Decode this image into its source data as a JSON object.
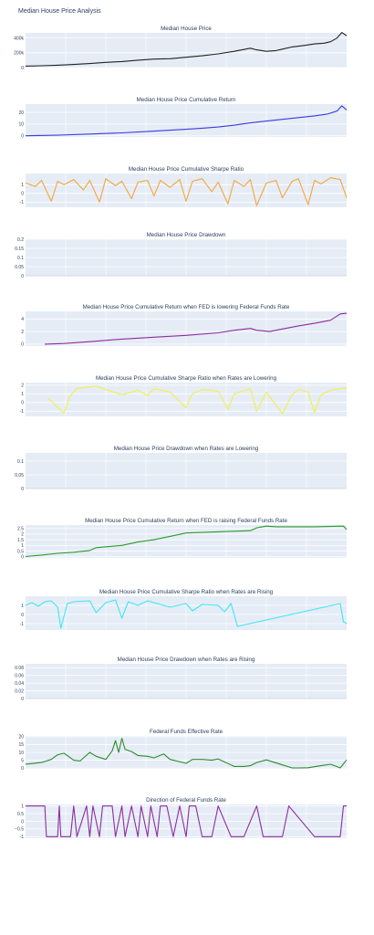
{
  "page": {
    "title": "Median House Price Analysis"
  },
  "colors": {
    "background": "#ffffff",
    "plot_bg": "#e5ecf6",
    "grid": "#ffffff",
    "text": "#2a3f5f"
  },
  "chart_data": [
    {
      "type": "line",
      "title": "Median House Price",
      "color": "#222222",
      "ylim": [
        0,
        470000
      ],
      "yticks": [
        0,
        200000,
        400000
      ],
      "yticklabels": [
        "0",
        "200k",
        "400k"
      ],
      "x": [
        0,
        0.05,
        0.1,
        0.15,
        0.2,
        0.25,
        0.3,
        0.35,
        0.4,
        0.45,
        0.5,
        0.55,
        0.6,
        0.65,
        0.7,
        0.72,
        0.75,
        0.78,
        0.8,
        0.83,
        0.87,
        0.9,
        0.93,
        0.95,
        0.97,
        0.985,
        1.0
      ],
      "values": [
        20000,
        25000,
        32000,
        42000,
        55000,
        70000,
        82000,
        100000,
        115000,
        120000,
        140000,
        160000,
        185000,
        220000,
        262000,
        240000,
        220000,
        230000,
        250000,
        280000,
        300000,
        320000,
        330000,
        350000,
        400000,
        475000,
        430000
      ]
    },
    {
      "type": "line",
      "title": "Median House Price Cumulative Return",
      "color": "#3b3bde",
      "ylim": [
        -1,
        27
      ],
      "yticks": [
        0,
        10,
        20
      ],
      "yticklabels": [
        "0",
        "10",
        "20"
      ],
      "x": [
        0,
        0.1,
        0.2,
        0.3,
        0.4,
        0.5,
        0.55,
        0.6,
        0.65,
        0.7,
        0.75,
        0.8,
        0.85,
        0.9,
        0.94,
        0.97,
        0.985,
        1.0
      ],
      "values": [
        0,
        0.5,
        1.5,
        2.5,
        4.0,
        5.5,
        6.5,
        7.5,
        9.0,
        11.0,
        12.5,
        14.0,
        15.5,
        17.0,
        18.5,
        21.0,
        25.5,
        22.0
      ]
    },
    {
      "type": "line",
      "title": "Median House Price Cumulative Sharpe Ratio",
      "color": "#f4a63a",
      "ylim": [
        -1.6,
        2.3
      ],
      "yticks": [
        -1,
        0,
        1
      ],
      "yticklabels": [
        "-1",
        "0",
        "1"
      ],
      "x": [
        0,
        0.03,
        0.05,
        0.08,
        0.1,
        0.12,
        0.15,
        0.18,
        0.2,
        0.23,
        0.25,
        0.28,
        0.3,
        0.33,
        0.35,
        0.38,
        0.4,
        0.42,
        0.45,
        0.48,
        0.5,
        0.52,
        0.55,
        0.58,
        0.6,
        0.63,
        0.65,
        0.68,
        0.7,
        0.72,
        0.75,
        0.78,
        0.8,
        0.83,
        0.85,
        0.88,
        0.9,
        0.92,
        0.95,
        0.98,
        1.0
      ],
      "values": [
        1.2,
        0.8,
        1.5,
        -0.9,
        1.4,
        1.0,
        1.6,
        0.4,
        1.5,
        -1.0,
        1.7,
        0.9,
        1.4,
        -0.6,
        1.3,
        1.5,
        -0.3,
        1.5,
        0.7,
        1.6,
        -0.9,
        1.4,
        1.7,
        0.2,
        1.3,
        -1.2,
        1.5,
        0.8,
        1.6,
        -1.4,
        1.2,
        1.5,
        -0.5,
        1.4,
        1.7,
        -1.3,
        1.5,
        1.1,
        1.8,
        1.6,
        -0.5
      ]
    },
    {
      "type": "line",
      "title": "Median House Price Drawdown",
      "color": "#cfd8e6",
      "ylim": [
        0,
        0.2
      ],
      "yticks": [
        0,
        0.05,
        0.1,
        0.15,
        0.2
      ],
      "yticklabels": [
        "0",
        "0.05",
        "0.1",
        "0.15",
        "0.2"
      ],
      "x": [
        0,
        0.5,
        1.0
      ],
      "values": [
        0,
        0,
        0
      ]
    },
    {
      "type": "line",
      "title": "Median House Price Cumulative Return when FED is lowering Federal Funds Rate",
      "color": "#8e2c9e",
      "ylim": [
        -0.3,
        5.2
      ],
      "yticks": [
        0,
        2,
        4
      ],
      "yticklabels": [
        "0",
        "2",
        "4"
      ],
      "x": [
        0.06,
        0.12,
        0.2,
        0.3,
        0.4,
        0.5,
        0.6,
        0.65,
        0.7,
        0.72,
        0.76,
        0.8,
        0.85,
        0.9,
        0.95,
        0.98,
        1.0
      ],
      "values": [
        0.0,
        0.1,
        0.4,
        0.8,
        1.1,
        1.4,
        1.8,
        2.2,
        2.5,
        2.2,
        2.0,
        2.4,
        2.9,
        3.3,
        3.8,
        4.8,
        4.9
      ]
    },
    {
      "type": "line",
      "title": "Median House Price Cumulative Sharpe Ratio when Rates are Lowering",
      "color": "#f2f04a",
      "ylim": [
        -1.6,
        2.3
      ],
      "yticks": [
        -1,
        0,
        1,
        2
      ],
      "yticklabels": [
        "-1",
        "0",
        "1",
        "2"
      ],
      "x": [
        0.07,
        0.12,
        0.14,
        0.16,
        0.2,
        0.22,
        0.25,
        0.3,
        0.35,
        0.38,
        0.4,
        0.45,
        0.5,
        0.52,
        0.55,
        0.6,
        0.63,
        0.65,
        0.7,
        0.72,
        0.75,
        0.8,
        0.83,
        0.85,
        0.88,
        0.9,
        0.92,
        0.95,
        0.98,
        1.0
      ],
      "values": [
        0.5,
        -1.2,
        0.8,
        1.6,
        1.8,
        1.9,
        1.5,
        0.9,
        1.4,
        0.8,
        1.6,
        1.2,
        -0.6,
        1.0,
        1.5,
        1.3,
        -0.8,
        1.0,
        1.6,
        -1.0,
        1.2,
        -1.3,
        0.9,
        1.5,
        1.2,
        -1.2,
        0.9,
        1.4,
        1.6,
        1.7
      ]
    },
    {
      "type": "line",
      "title": "Median House Price Drawdown when Rates are Lowering",
      "color": "#cfd8e6",
      "ylim": [
        0,
        0.13
      ],
      "yticks": [
        0,
        0.05,
        0.1
      ],
      "yticklabels": [
        "0",
        "0.05",
        "0.1"
      ],
      "x": [
        0,
        0.5,
        1.0
      ],
      "values": [
        0,
        0,
        0
      ]
    },
    {
      "type": "line",
      "title": "Median House Price Cumulative Return when FED is raising Federal Funds Rate",
      "color": "#2c9a2c",
      "ylim": [
        -0.1,
        2.8
      ],
      "yticks": [
        0,
        0.5,
        1,
        1.5,
        2,
        2.5
      ],
      "yticklabels": [
        "0",
        "0.5",
        "1",
        "1.5",
        "2",
        "2.5"
      ],
      "x": [
        0,
        0.05,
        0.1,
        0.15,
        0.2,
        0.22,
        0.3,
        0.35,
        0.4,
        0.45,
        0.5,
        0.55,
        0.6,
        0.65,
        0.7,
        0.72,
        0.75,
        0.78,
        0.8,
        0.9,
        0.99,
        1.0
      ],
      "values": [
        0.02,
        0.15,
        0.3,
        0.4,
        0.55,
        0.8,
        1.0,
        1.3,
        1.5,
        1.8,
        2.1,
        2.15,
        2.2,
        2.25,
        2.3,
        2.55,
        2.7,
        2.65,
        2.65,
        2.65,
        2.7,
        2.4
      ]
    },
    {
      "type": "line",
      "title": "Median House Price Cumulative Sharpe Ratio when Rates are Rising",
      "color": "#3be8f2",
      "ylim": [
        -1.7,
        2.0
      ],
      "yticks": [
        -1,
        0,
        1
      ],
      "yticklabels": [
        "-1",
        "0",
        "1"
      ],
      "x": [
        0.0,
        0.02,
        0.04,
        0.06,
        0.08,
        0.1,
        0.11,
        0.13,
        0.15,
        0.2,
        0.22,
        0.25,
        0.28,
        0.3,
        0.32,
        0.35,
        0.38,
        0.4,
        0.45,
        0.5,
        0.52,
        0.55,
        0.6,
        0.62,
        0.64,
        0.66,
        0.98,
        0.99,
        1.0
      ],
      "values": [
        1.0,
        1.3,
        0.9,
        1.4,
        1.5,
        0.8,
        -1.5,
        1.2,
        1.4,
        1.5,
        0.2,
        1.3,
        1.6,
        -0.4,
        1.4,
        1.0,
        1.5,
        1.3,
        0.8,
        1.2,
        0.4,
        1.1,
        1.0,
        0.3,
        1.2,
        -1.3,
        1.2,
        -0.8,
        -1.0
      ]
    },
    {
      "type": "line",
      "title": "Median House Price Drawdown when Rates are Rising",
      "color": "#cfd8e6",
      "ylim": [
        0,
        0.09
      ],
      "yticks": [
        0,
        0.02,
        0.04,
        0.06,
        0.08
      ],
      "yticklabels": [
        "0",
        "0.02",
        "0.04",
        "0.06",
        "0.08"
      ],
      "x": [
        0,
        0.5,
        1.0
      ],
      "values": [
        0,
        0,
        0
      ]
    },
    {
      "type": "line",
      "title": "Federal Funds Effective Rate",
      "color": "#2c8c2c",
      "ylim": [
        -0.5,
        20.5
      ],
      "yticks": [
        0,
        5,
        10,
        15,
        20
      ],
      "yticklabels": [
        "0",
        "5",
        "10",
        "15",
        "20"
      ],
      "x": [
        0,
        0.05,
        0.08,
        0.1,
        0.12,
        0.15,
        0.17,
        0.2,
        0.22,
        0.25,
        0.27,
        0.28,
        0.29,
        0.3,
        0.31,
        0.33,
        0.35,
        0.38,
        0.4,
        0.43,
        0.45,
        0.5,
        0.52,
        0.55,
        0.58,
        0.6,
        0.65,
        0.68,
        0.7,
        0.72,
        0.75,
        0.8,
        0.83,
        0.85,
        0.88,
        0.92,
        0.95,
        0.98,
        1.0
      ],
      "values": [
        2.5,
        3.5,
        5.5,
        8.5,
        9.5,
        5.0,
        4.5,
        10.0,
        7.5,
        5.5,
        11.0,
        17.5,
        10.0,
        19.0,
        12.0,
        10.5,
        8.0,
        7.5,
        6.5,
        9.0,
        5.5,
        3.0,
        5.5,
        5.5,
        5.0,
        5.8,
        1.0,
        1.0,
        1.5,
        3.5,
        5.2,
        2.0,
        0.1,
        0.1,
        0.2,
        1.5,
        2.4,
        0.1,
        5.2
      ]
    },
    {
      "type": "line",
      "title": "Direction of Federal Funds Rate",
      "color": "#8e2c9e",
      "ylim": [
        -1.1,
        1.1
      ],
      "yticks": [
        -1,
        -0.5,
        0,
        0.5,
        1
      ],
      "yticklabels": [
        "-1",
        "−0.5",
        "0",
        "0.5",
        "1"
      ],
      "x": [
        0,
        0.06,
        0.065,
        0.1,
        0.105,
        0.11,
        0.14,
        0.15,
        0.16,
        0.19,
        0.2,
        0.21,
        0.23,
        0.24,
        0.27,
        0.28,
        0.3,
        0.31,
        0.33,
        0.35,
        0.36,
        0.38,
        0.39,
        0.41,
        0.42,
        0.44,
        0.46,
        0.48,
        0.5,
        0.51,
        0.53,
        0.55,
        0.58,
        0.6,
        0.64,
        0.68,
        0.72,
        0.74,
        0.8,
        0.82,
        0.9,
        0.98,
        0.99,
        1.0
      ],
      "values": [
        1,
        1,
        -1,
        -1,
        1,
        -1,
        -1,
        1,
        -1,
        1,
        -1,
        1,
        -1,
        1,
        1,
        -1,
        1,
        -1,
        1,
        -1,
        1,
        -1,
        1,
        -1,
        1,
        1,
        -1,
        1,
        -1,
        1,
        1,
        -1,
        -1,
        1,
        -1,
        -1,
        1,
        -1,
        -1,
        1,
        -1,
        -1,
        1,
        1
      ]
    }
  ]
}
